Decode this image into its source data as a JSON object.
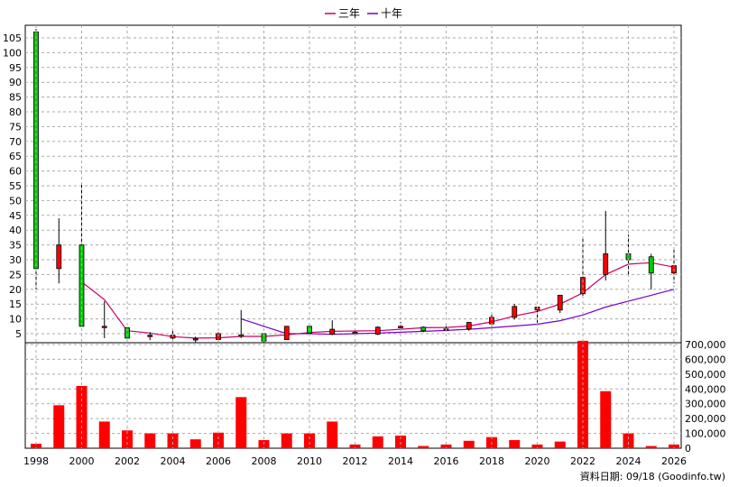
{
  "legend": [
    {
      "label": "三年",
      "color": "#cc0066"
    },
    {
      "label": "十年",
      "color": "#7700cc"
    }
  ],
  "source_note": "資料日期: 09/18  (Goodinfo.tw)",
  "chart_data": [
    {
      "type": "candlestick",
      "ylim": [
        0,
        108
      ],
      "yticks": [
        5,
        10,
        15,
        20,
        25,
        30,
        35,
        40,
        45,
        50,
        55,
        60,
        65,
        70,
        75,
        80,
        85,
        90,
        95,
        100,
        105
      ],
      "grid": true,
      "legend_placement": "top-center",
      "x_tick_labels": [
        "1998",
        "2000",
        "2002",
        "2004",
        "2006",
        "2008",
        "2010",
        "2012",
        "2014",
        "2016",
        "2018",
        "2020",
        "2022",
        "2024",
        "2026"
      ],
      "up_color": "#ff0000",
      "down_color": "#00cc00",
      "candles": [
        {
          "year": 1998,
          "open": 107,
          "high": 108,
          "low": 20,
          "close": 27
        },
        {
          "year": 1999,
          "open": 27,
          "high": 44,
          "low": 22,
          "close": 35
        },
        {
          "year": 2000,
          "open": 35,
          "high": 55.5,
          "low": 7.5,
          "close": 7.5
        },
        {
          "year": 2001,
          "open": 7.5,
          "high": 16,
          "low": 3.5,
          "close": 7.5
        },
        {
          "year": 2002,
          "open": 7,
          "high": 7,
          "low": 3.5,
          "close": 3.5
        },
        {
          "year": 2003,
          "open": 4,
          "high": 5.5,
          "low": 2.8,
          "close": 4.5
        },
        {
          "year": 2004,
          "open": 3.5,
          "high": 6.5,
          "low": 2.5,
          "close": 4.5
        },
        {
          "year": 2005,
          "open": 3,
          "high": 4,
          "low": 2,
          "close": 3.3
        },
        {
          "year": 2006,
          "open": 3,
          "high": 5.5,
          "low": 2.5,
          "close": 5
        },
        {
          "year": 2007,
          "open": 4.6,
          "high": 13,
          "low": 3.5,
          "close": 4.4
        },
        {
          "year": 2008,
          "open": 5,
          "high": 5,
          "low": 2,
          "close": 2.5
        },
        {
          "year": 2009,
          "open": 3,
          "high": 7.5,
          "low": 3,
          "close": 7.5
        },
        {
          "year": 2010,
          "open": 7.5,
          "high": 7.5,
          "low": 5.2,
          "close": 5.2
        },
        {
          "year": 2011,
          "open": 4.8,
          "high": 9.5,
          "low": 4.5,
          "close": 6.5
        },
        {
          "year": 2012,
          "open": 5,
          "high": 6.5,
          "low": 4.5,
          "close": 5.5
        },
        {
          "year": 2013,
          "open": 4.8,
          "high": 7.5,
          "low": 4.5,
          "close": 7.2
        },
        {
          "year": 2014,
          "open": 7,
          "high": 9,
          "low": 6,
          "close": 7.5
        },
        {
          "year": 2015,
          "open": 7.2,
          "high": 7.5,
          "low": 5.5,
          "close": 6
        },
        {
          "year": 2016,
          "open": 6.2,
          "high": 7.5,
          "low": 5.8,
          "close": 6.6
        },
        {
          "year": 2017,
          "open": 6.6,
          "high": 9,
          "low": 6,
          "close": 8.8
        },
        {
          "year": 2018,
          "open": 8.3,
          "high": 11.5,
          "low": 7.5,
          "close": 10.5
        },
        {
          "year": 2019,
          "open": 10.5,
          "high": 15,
          "low": 9.8,
          "close": 14.2
        },
        {
          "year": 2020,
          "open": 13,
          "high": 14,
          "low": 8.7,
          "close": 14
        },
        {
          "year": 2021,
          "open": 13,
          "high": 18,
          "low": 12,
          "close": 18
        },
        {
          "year": 2022,
          "open": 18.5,
          "high": 37.5,
          "low": 17,
          "close": 24
        },
        {
          "year": 2023,
          "open": 25,
          "high": 46.5,
          "low": 23,
          "close": 32
        },
        {
          "year": 2024,
          "open": 32,
          "high": 38.5,
          "low": 25,
          "close": 30
        },
        {
          "year": 2025,
          "open": 31,
          "high": 32,
          "low": 20,
          "close": 25.5
        },
        {
          "year": 2026,
          "open": 25.5,
          "high": 34,
          "low": 22,
          "close": 28
        }
      ],
      "ma3": {
        "name": "三年",
        "x": [
          2000,
          2001,
          2002,
          2003,
          2004,
          2005,
          2006,
          2007,
          2008,
          2009,
          2010,
          2011,
          2012,
          2013,
          2014,
          2015,
          2016,
          2017,
          2018,
          2019,
          2020,
          2021,
          2022,
          2023,
          2024,
          2025,
          2026
        ],
        "y": [
          22.5,
          16.5,
          6,
          5.2,
          4,
          3.5,
          3.6,
          4.1,
          4.1,
          4.6,
          5.4,
          5.8,
          5.9,
          6,
          6.5,
          7,
          7.1,
          7.6,
          9,
          11,
          12.5,
          15,
          18.8,
          25,
          28.5,
          29,
          27.5
        ]
      },
      "ma10": {
        "name": "十年",
        "x": [
          2007,
          2008,
          2009,
          2010,
          2011,
          2012,
          2013,
          2014,
          2015,
          2016,
          2017,
          2018,
          2019,
          2020,
          2021,
          2022,
          2023,
          2024,
          2025,
          2026
        ],
        "y": [
          10,
          7.5,
          5,
          5,
          4.8,
          5,
          5.2,
          5.5,
          5.8,
          6.1,
          6.5,
          7,
          7.6,
          8.2,
          9.4,
          11.3,
          14,
          16,
          18,
          20
        ]
      }
    },
    {
      "type": "bar",
      "ylim": [
        0,
        720000
      ],
      "yticks": [
        0,
        100000,
        200000,
        300000,
        400000,
        500000,
        600000,
        700000
      ],
      "ytick_labels": [
        "0",
        "100,000",
        "200,000",
        "300,000",
        "400,000",
        "500,000",
        "600,000",
        "700,000"
      ],
      "color": "#ff0000",
      "x": [
        1998,
        1999,
        2000,
        2001,
        2002,
        2003,
        2004,
        2005,
        2006,
        2007,
        2008,
        2009,
        2010,
        2011,
        2012,
        2013,
        2014,
        2015,
        2016,
        2017,
        2018,
        2019,
        2020,
        2021,
        2022,
        2023,
        2024,
        2025,
        2026
      ],
      "values": [
        30000,
        290000,
        420000,
        180000,
        120000,
        100000,
        100000,
        60000,
        105000,
        345000,
        55000,
        100000,
        100000,
        180000,
        25000,
        80000,
        85000,
        15000,
        25000,
        50000,
        75000,
        55000,
        25000,
        45000,
        725000,
        385000,
        100000,
        15000,
        25000
      ]
    }
  ]
}
